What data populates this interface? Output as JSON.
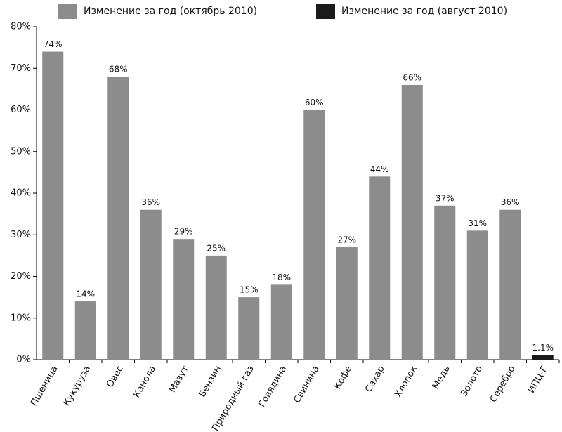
{
  "chart_data": {
    "type": "bar",
    "categories": [
      "Пшеница",
      "Кукуруза",
      "Овес",
      "Канола",
      "Мазут",
      "Бензин",
      "Природный газ",
      "Говядина",
      "Свинина",
      "Кофе",
      "Сахар",
      "Хлопок",
      "Медь",
      "Золото",
      "Серебро",
      "ИПЦ-Г"
    ],
    "series": [
      {
        "name": "Изменение за год (октябрь 2010)",
        "color": "#8c8c8c",
        "values": [
          74,
          14,
          68,
          36,
          29,
          25,
          15,
          18,
          60,
          27,
          44,
          66,
          37,
          31,
          36,
          null
        ],
        "value_labels": [
          "74%",
          "14%",
          "68%",
          "36%",
          "29%",
          "25%",
          "15%",
          "18%",
          "60%",
          "27%",
          "44%",
          "66%",
          "37%",
          "31%",
          "36%",
          null
        ]
      },
      {
        "name": "Изменение за год (август 2010)",
        "color": "#1a1a1a",
        "values": [
          null,
          null,
          null,
          null,
          null,
          null,
          null,
          null,
          null,
          null,
          null,
          null,
          null,
          null,
          null,
          1.1
        ],
        "value_labels": [
          null,
          null,
          null,
          null,
          null,
          null,
          null,
          null,
          null,
          null,
          null,
          null,
          null,
          null,
          null,
          "1.1%"
        ]
      }
    ],
    "ylim": [
      0,
      80
    ],
    "yticks": [
      {
        "value": 0,
        "label": "0%"
      },
      {
        "value": 10,
        "label": "10%"
      },
      {
        "value": 20,
        "label": "20%"
      },
      {
        "value": 30,
        "label": "30%"
      },
      {
        "value": 40,
        "label": "40%"
      },
      {
        "value": 50,
        "label": "50%"
      },
      {
        "value": 60,
        "label": "60%"
      },
      {
        "value": 70,
        "label": "70%"
      },
      {
        "value": 80,
        "label": "80%"
      }
    ],
    "grid": false,
    "legend": "top"
  }
}
